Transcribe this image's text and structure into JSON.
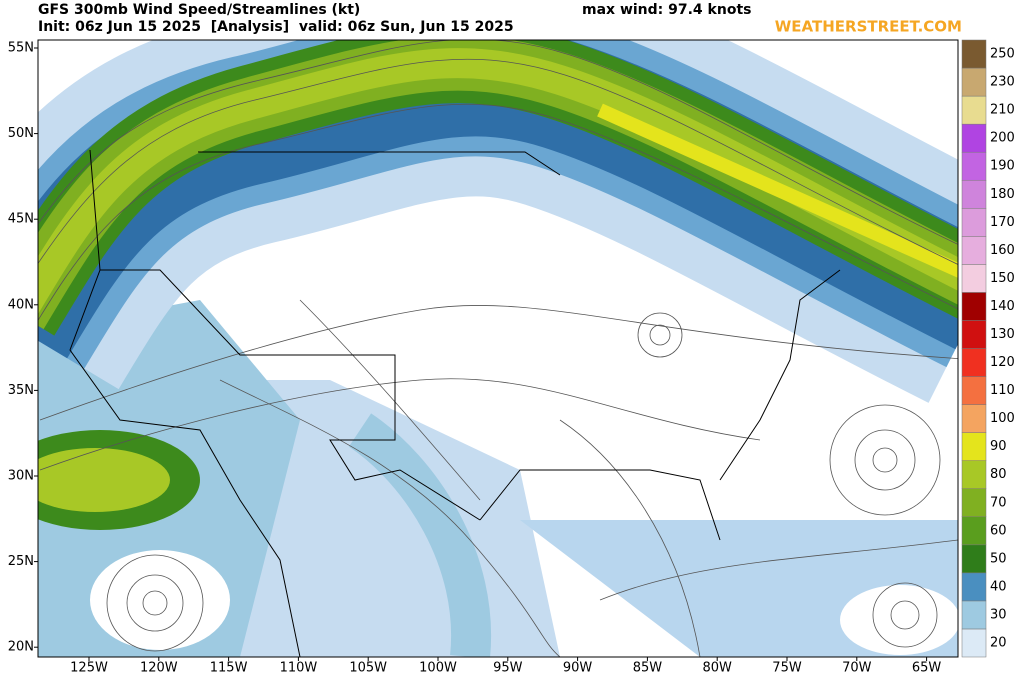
{
  "header": {
    "title": "GFS 300mb Wind Speed/Streamlines (kt)",
    "subtitle": "Init: 06z Jun 15 2025  [Analysis]  valid: 06z Sun, Jun 15 2025",
    "max_wind": "max wind: 97.4 knots",
    "logo": "WEATHERSTREET.COM"
  },
  "map": {
    "lat_labels": [
      "55N",
      "50N",
      "45N",
      "40N",
      "35N",
      "30N",
      "25N",
      "20N"
    ],
    "lon_labels": [
      "125W",
      "120W",
      "115W",
      "110W",
      "105W",
      "100W",
      "95W",
      "90W",
      "85W",
      "80W",
      "75W",
      "70W",
      "65W"
    ]
  },
  "colorbar": {
    "values": [
      20,
      30,
      40,
      50,
      60,
      70,
      80,
      90,
      100,
      110,
      120,
      130,
      140,
      150,
      160,
      170,
      180,
      190,
      200,
      210,
      230,
      250
    ],
    "colors": [
      "#dceaf6",
      "#9ecae1",
      "#4a8fc0",
      "#2f7d1a",
      "#5a9e1e",
      "#80b021",
      "#a8c826",
      "#e4e41c",
      "#f4a460",
      "#f47040",
      "#f03020",
      "#d01010",
      "#a00000",
      "#f3cde0",
      "#e6aede",
      "#dc9cdc",
      "#cf84dc",
      "#c264e2",
      "#b044e2",
      "#e8dc90",
      "#c8a870",
      "#7a5a30"
    ]
  }
}
